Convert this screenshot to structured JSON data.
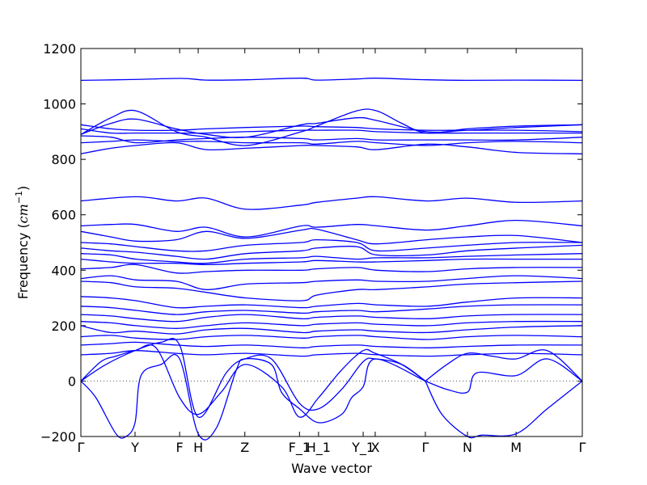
{
  "chart_data": {
    "type": "line",
    "title": "",
    "xlabel": "Wave vector",
    "ylabel": "Frequency ($cm^{-1}$)",
    "ylabel_parts": {
      "text": "Frequency (",
      "math": "cm",
      "sup": "−1",
      "close": ")"
    },
    "ylim": [
      -200,
      1200
    ],
    "xlim": [
      0,
      1
    ],
    "grid": false,
    "legend": "none",
    "line_color": "#0000ff",
    "zero_line_color": "#555555",
    "y_ticks": [
      -200,
      0,
      200,
      400,
      600,
      800,
      1000,
      1200
    ],
    "y_tick_labels": [
      "−200",
      "0",
      "200",
      "400",
      "600",
      "800",
      "1000",
      "1200"
    ],
    "x_ticks": [
      {
        "label": "Γ",
        "pos": 0.0
      },
      {
        "label": "Y",
        "pos": 0.108
      },
      {
        "label": "F",
        "pos": 0.197
      },
      {
        "label": "H",
        "pos": 0.234
      },
      {
        "label": "Z",
        "pos": 0.327
      },
      {
        "label": "F_1",
        "pos": 0.436
      },
      {
        "label": "H_1",
        "pos": 0.474
      },
      {
        "label": "Y_1",
        "pos": 0.563
      },
      {
        "label": "X",
        "pos": 0.587
      },
      {
        "label": "Γ",
        "pos": 0.687
      },
      {
        "label": "N",
        "pos": 0.771
      },
      {
        "label": "M",
        "pos": 0.868
      },
      {
        "label": "Γ",
        "pos": 1.0
      }
    ],
    "series": [
      {
        "x": [
          0,
          0.1,
          0.2,
          0.25,
          0.33,
          0.44,
          0.47,
          0.55,
          0.59,
          0.69,
          0.77,
          0.87,
          1.0
        ],
        "values": [
          1085,
          1088,
          1092,
          1086,
          1087,
          1093,
          1086,
          1090,
          1093,
          1087,
          1085,
          1086,
          1085
        ]
      },
      {
        "x": [
          0,
          0.06,
          0.11,
          0.19,
          0.25,
          0.33,
          0.44,
          0.47,
          0.55,
          0.59,
          0.64,
          0.69,
          0.77,
          0.87,
          1.0
        ],
        "values": [
          890,
          950,
          975,
          900,
          880,
          850,
          900,
          920,
          975,
          975,
          930,
          895,
          910,
          920,
          925
        ]
      },
      {
        "x": [
          0,
          0.06,
          0.11,
          0.19,
          0.25,
          0.33,
          0.44,
          0.47,
          0.55,
          0.59,
          0.69,
          0.77,
          0.87,
          1.0
        ],
        "values": [
          890,
          930,
          945,
          910,
          890,
          880,
          925,
          930,
          950,
          940,
          900,
          905,
          915,
          925
        ]
      },
      {
        "x": [
          0,
          0.06,
          0.11,
          0.19,
          0.25,
          0.33,
          0.44,
          0.47,
          0.55,
          0.59,
          0.69,
          0.77,
          0.87,
          1.0
        ],
        "values": [
          925,
          910,
          905,
          905,
          910,
          915,
          920,
          918,
          915,
          910,
          905,
          905,
          905,
          900
        ]
      },
      {
        "x": [
          0,
          0.06,
          0.11,
          0.19,
          0.25,
          0.33,
          0.44,
          0.47,
          0.55,
          0.59,
          0.69,
          0.77,
          0.87,
          1.0
        ],
        "values": [
          910,
          895,
          895,
          895,
          895,
          900,
          905,
          905,
          905,
          900,
          895,
          895,
          895,
          895
        ]
      },
      {
        "x": [
          0,
          0.06,
          0.11,
          0.19,
          0.25,
          0.33,
          0.44,
          0.47,
          0.55,
          0.59,
          0.69,
          0.77,
          0.87,
          1.0
        ],
        "values": [
          885,
          880,
          860,
          870,
          875,
          880,
          875,
          870,
          875,
          870,
          870,
          870,
          870,
          880
        ]
      },
      {
        "x": [
          0,
          0.06,
          0.11,
          0.19,
          0.25,
          0.33,
          0.44,
          0.47,
          0.55,
          0.59,
          0.69,
          0.77,
          0.87,
          1.0
        ],
        "values": [
          860,
          865,
          870,
          865,
          865,
          860,
          860,
          855,
          865,
          860,
          850,
          860,
          865,
          860
        ]
      },
      {
        "x": [
          0,
          0.06,
          0.11,
          0.19,
          0.25,
          0.33,
          0.44,
          0.47,
          0.55,
          0.59,
          0.69,
          0.77,
          0.87,
          1.0
        ],
        "values": [
          820,
          840,
          850,
          860,
          835,
          840,
          850,
          850,
          845,
          835,
          855,
          845,
          825,
          820
        ]
      },
      {
        "x": [
          0,
          0.11,
          0.19,
          0.25,
          0.33,
          0.44,
          0.47,
          0.55,
          0.59,
          0.69,
          0.77,
          0.87,
          1.0
        ],
        "values": [
          650,
          665,
          650,
          660,
          620,
          635,
          645,
          660,
          665,
          650,
          660,
          645,
          650
        ]
      },
      {
        "x": [
          0,
          0.06,
          0.11,
          0.19,
          0.25,
          0.33,
          0.44,
          0.47,
          0.55,
          0.59,
          0.69,
          0.77,
          0.87,
          1.0
        ],
        "values": [
          560,
          565,
          565,
          540,
          555,
          520,
          560,
          555,
          565,
          560,
          545,
          560,
          580,
          560
        ]
      },
      {
        "x": [
          0,
          0.06,
          0.11,
          0.19,
          0.25,
          0.33,
          0.44,
          0.47,
          0.55,
          0.59,
          0.69,
          0.77,
          0.87,
          1.0
        ],
        "values": [
          540,
          520,
          505,
          510,
          540,
          515,
          545,
          548,
          510,
          495,
          510,
          520,
          525,
          500
        ]
      },
      {
        "x": [
          0,
          0.06,
          0.11,
          0.19,
          0.25,
          0.33,
          0.44,
          0.47,
          0.55,
          0.59,
          0.69,
          0.77,
          0.87,
          1.0
        ],
        "values": [
          500,
          495,
          485,
          470,
          470,
          490,
          500,
          510,
          500,
          470,
          480,
          490,
          500,
          500
        ]
      },
      {
        "x": [
          0,
          0.06,
          0.11,
          0.19,
          0.25,
          0.33,
          0.44,
          0.47,
          0.55,
          0.59,
          0.69,
          0.77,
          0.87,
          1.0
        ],
        "values": [
          480,
          470,
          465,
          450,
          440,
          460,
          470,
          480,
          485,
          455,
          455,
          470,
          480,
          490
        ]
      },
      {
        "x": [
          0,
          0.06,
          0.11,
          0.19,
          0.25,
          0.33,
          0.44,
          0.47,
          0.55,
          0.59,
          0.69,
          0.77,
          0.87,
          1.0
        ],
        "values": [
          460,
          455,
          440,
          430,
          425,
          440,
          445,
          450,
          440,
          445,
          445,
          450,
          455,
          460
        ]
      },
      {
        "x": [
          0,
          0.06,
          0.11,
          0.19,
          0.25,
          0.33,
          0.44,
          0.47,
          0.55,
          0.59,
          0.69,
          0.77,
          0.87,
          1.0
        ],
        "values": [
          440,
          430,
          425,
          425,
          420,
          425,
          430,
          435,
          430,
          430,
          435,
          440,
          440,
          440
        ]
      },
      {
        "x": [
          0,
          0.06,
          0.11,
          0.19,
          0.25,
          0.33,
          0.44,
          0.47,
          0.55,
          0.59,
          0.69,
          0.77,
          0.87,
          1.0
        ],
        "values": [
          405,
          410,
          420,
          390,
          395,
          400,
          400,
          405,
          410,
          400,
          395,
          405,
          410,
          410
        ]
      },
      {
        "x": [
          0,
          0.06,
          0.11,
          0.19,
          0.25,
          0.33,
          0.44,
          0.47,
          0.55,
          0.59,
          0.69,
          0.77,
          0.87,
          1.0
        ],
        "values": [
          370,
          380,
          365,
          360,
          330,
          350,
          355,
          360,
          365,
          360,
          360,
          370,
          380,
          370
        ]
      },
      {
        "x": [
          0,
          0.06,
          0.11,
          0.19,
          0.25,
          0.33,
          0.44,
          0.47,
          0.55,
          0.59,
          0.69,
          0.77,
          0.87,
          1.0
        ],
        "values": [
          360,
          355,
          340,
          335,
          320,
          300,
          290,
          310,
          330,
          330,
          340,
          350,
          355,
          360
        ]
      },
      {
        "x": [
          0,
          0.06,
          0.11,
          0.19,
          0.25,
          0.33,
          0.44,
          0.47,
          0.55,
          0.59,
          0.69,
          0.77,
          0.87,
          1.0
        ],
        "values": [
          305,
          300,
          290,
          265,
          270,
          275,
          265,
          270,
          280,
          275,
          270,
          285,
          300,
          300
        ]
      },
      {
        "x": [
          0,
          0.06,
          0.11,
          0.19,
          0.25,
          0.33,
          0.44,
          0.47,
          0.55,
          0.59,
          0.69,
          0.77,
          0.87,
          1.0
        ],
        "values": [
          270,
          265,
          255,
          240,
          250,
          255,
          245,
          250,
          255,
          250,
          260,
          270,
          275,
          275
        ]
      },
      {
        "x": [
          0,
          0.06,
          0.11,
          0.19,
          0.25,
          0.33,
          0.44,
          0.47,
          0.55,
          0.59,
          0.69,
          0.77,
          0.87,
          1.0
        ],
        "values": [
          240,
          235,
          225,
          215,
          230,
          240,
          225,
          230,
          235,
          230,
          225,
          235,
          240,
          240
        ]
      },
      {
        "x": [
          0,
          0.06,
          0.11,
          0.19,
          0.25,
          0.33,
          0.44,
          0.47,
          0.55,
          0.59,
          0.69,
          0.77,
          0.87,
          1.0
        ],
        "values": [
          215,
          210,
          200,
          190,
          200,
          210,
          200,
          205,
          210,
          205,
          200,
          210,
          215,
          215
        ]
      },
      {
        "x": [
          0,
          0.06,
          0.11,
          0.19,
          0.25,
          0.33,
          0.44,
          0.47,
          0.55,
          0.59,
          0.69,
          0.77,
          0.87,
          1.0
        ],
        "values": [
          200,
          175,
          180,
          170,
          185,
          190,
          175,
          180,
          185,
          180,
          175,
          185,
          195,
          200
        ]
      },
      {
        "x": [
          0,
          0.06,
          0.11,
          0.19,
          0.25,
          0.33,
          0.44,
          0.47,
          0.55,
          0.59,
          0.69,
          0.77,
          0.87,
          1.0
        ],
        "values": [
          160,
          165,
          155,
          150,
          160,
          165,
          155,
          160,
          165,
          160,
          150,
          160,
          165,
          160
        ]
      },
      {
        "x": [
          0,
          0.06,
          0.11,
          0.19,
          0.25,
          0.33,
          0.44,
          0.47,
          0.55,
          0.59,
          0.69,
          0.77,
          0.87,
          1.0
        ],
        "values": [
          130,
          135,
          140,
          130,
          125,
          130,
          120,
          125,
          130,
          125,
          120,
          125,
          130,
          130
        ]
      },
      {
        "x": [
          0,
          0.06,
          0.11,
          0.19,
          0.25,
          0.33,
          0.44,
          0.47,
          0.55,
          0.59,
          0.69,
          0.77,
          0.87,
          1.0
        ],
        "values": [
          95,
          100,
          110,
          100,
          95,
          100,
          90,
          95,
          100,
          95,
          90,
          95,
          100,
          95
        ]
      },
      {
        "x": [
          0,
          0.05,
          0.108,
          0.16,
          0.197,
          0.234,
          0.29,
          0.327,
          0.38,
          0.436,
          0.474,
          0.52,
          0.563,
          0.587,
          0.64,
          0.687
        ],
        "values": [
          0,
          60,
          110,
          140,
          130,
          -130,
          30,
          80,
          80,
          -80,
          -100,
          -30,
          70,
          80,
          60,
          0
        ]
      },
      {
        "x": [
          0,
          0.03,
          0.07,
          0.09,
          0.108,
          0.12,
          0.16,
          0.197,
          0.234,
          0.27,
          0.31,
          0.327,
          0.38,
          0.4,
          0.436,
          0.474,
          0.52,
          0.54,
          0.563,
          0.587,
          0.687
        ],
        "values": [
          0,
          -60,
          -190,
          -200,
          -150,
          20,
          60,
          80,
          -190,
          -170,
          40,
          80,
          60,
          -40,
          -100,
          -150,
          -120,
          -60,
          -20,
          80,
          0
        ]
      },
      {
        "x": [
          0,
          0.04,
          0.07,
          0.108,
          0.15,
          0.197,
          0.234,
          0.28,
          0.327,
          0.4,
          0.436,
          0.474,
          0.52,
          0.563,
          0.587,
          0.64,
          0.687
        ],
        "values": [
          0,
          70,
          90,
          110,
          120,
          -60,
          -120,
          -40,
          60,
          -20,
          -130,
          -60,
          40,
          110,
          100,
          60,
          0
        ]
      },
      {
        "x": [
          0.687,
          0.72,
          0.771,
          0.8,
          0.868,
          0.93,
          1.0
        ],
        "values": [
          0,
          -120,
          -200,
          -195,
          -190,
          -100,
          0
        ]
      },
      {
        "x": [
          0.687,
          0.73,
          0.771,
          0.79,
          0.868,
          0.93,
          1.0
        ],
        "values": [
          0,
          -30,
          -40,
          30,
          20,
          80,
          0
        ]
      },
      {
        "x": [
          0.687,
          0.73,
          0.771,
          0.82,
          0.868,
          0.93,
          1.0
        ],
        "values": [
          0,
          60,
          100,
          90,
          80,
          110,
          0
        ]
      }
    ]
  }
}
